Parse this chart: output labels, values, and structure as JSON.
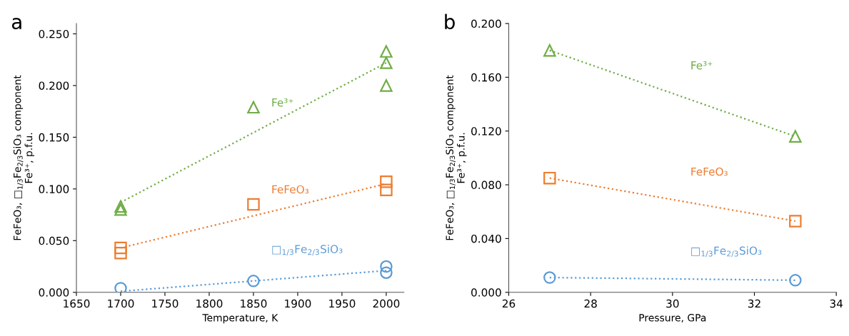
{
  "chart_data": [
    {
      "type": "scatter",
      "title": "a",
      "xlabel": "Temperature, K",
      "ylabel": "FeFeO₃, □$_{1/3}$Fe$_{2/3}$SiO₃ component\nFe³⁺, p.f.u.",
      "xlim": [
        1650,
        2020
      ],
      "xticks": [
        1650,
        1700,
        1750,
        1800,
        1850,
        1900,
        1950,
        2000
      ],
      "ylim": [
        0,
        0.26
      ],
      "yticks": [
        {
          "value": 0,
          "label": "0.000"
        },
        {
          "value": 0.05,
          "label": "0.050"
        },
        {
          "value": 0.1,
          "label": "0.100"
        },
        {
          "value": 0.15,
          "label": "0.150"
        },
        {
          "value": 0.2,
          "label": "0.200"
        },
        {
          "value": 0.25,
          "label": "0.250"
        }
      ],
      "grid": false,
      "legend": false,
      "series": [
        {
          "name": "Fe³⁺",
          "color": "#70ad47",
          "marker": "triangle",
          "x": [
            1700,
            1700,
            1850,
            2000,
            2000,
            2000
          ],
          "values": [
            0.083,
            0.08,
            0.179,
            0.233,
            0.222,
            0.2
          ]
        },
        {
          "name": "FeFeO₃",
          "color": "#ed7d31",
          "marker": "square",
          "x": [
            1700,
            1700,
            1850,
            2000,
            2000
          ],
          "values": [
            0.043,
            0.038,
            0.085,
            0.107,
            0.099
          ]
        },
        {
          "name": "□$_{1/3}$Fe$_{2/3}$SiO₃",
          "color": "#5b9bd5",
          "marker": "circle",
          "x": [
            1700,
            1850,
            2000,
            2000
          ],
          "values": [
            0.004,
            0.011,
            0.025,
            0.019
          ]
        },
        {
          "type": "line",
          "color": "#70ad47",
          "line_style": "dotted",
          "x": [
            1700,
            2000
          ],
          "values": [
            0.087,
            0.222
          ]
        },
        {
          "type": "line",
          "color": "#ed7d31",
          "line_style": "dotted",
          "x": [
            1700,
            2000
          ],
          "values": [
            0.043,
            0.105
          ]
        },
        {
          "type": "line",
          "color": "#5b9bd5",
          "line_style": "dotted",
          "x": [
            1700,
            2000
          ],
          "values": [
            0.001,
            0.021
          ]
        }
      ]
    },
    {
      "type": "scatter",
      "title": "b",
      "xlabel": "Pressure, GPa",
      "ylabel": "FeFeO₃, □$_{1/3}$Fe$_{2/3}$SiO₃ component\nFe³⁺, p.f.u.",
      "xlim": [
        26,
        34
      ],
      "xticks": [
        26,
        28,
        30,
        32,
        34
      ],
      "ylim": [
        0,
        0.2
      ],
      "yticks": [
        {
          "value": 0,
          "label": "0.000"
        },
        {
          "value": 0.04,
          "label": "0.040"
        },
        {
          "value": 0.08,
          "label": "0.080"
        },
        {
          "value": 0.12,
          "label": "0.120"
        },
        {
          "value": 0.16,
          "label": "0.160"
        },
        {
          "value": 0.2,
          "label": "0.200"
        }
      ],
      "grid": false,
      "legend": false,
      "series": [
        {
          "name": "Fe³⁺",
          "color": "#70ad47",
          "marker": "triangle",
          "x": [
            27,
            33
          ],
          "values": [
            0.18,
            0.116
          ]
        },
        {
          "name": "FeFeO₃",
          "color": "#ed7d31",
          "marker": "square",
          "x": [
            27,
            33
          ],
          "values": [
            0.085,
            0.053
          ]
        },
        {
          "name": "□$_{1/3}$Fe$_{2/3}$SiO₃",
          "color": "#5b9bd5",
          "marker": "circle",
          "x": [
            27,
            33
          ],
          "values": [
            0.011,
            0.009
          ]
        },
        {
          "type": "line",
          "color": "#70ad47",
          "line_style": "dotted",
          "x": [
            27,
            33
          ],
          "values": [
            0.18,
            0.116
          ]
        },
        {
          "type": "line",
          "color": "#ed7d31",
          "line_style": "dotted",
          "x": [
            27,
            33
          ],
          "values": [
            0.085,
            0.053
          ]
        },
        {
          "type": "line",
          "color": "#5b9bd5",
          "line_style": "dotted",
          "x": [
            27,
            33
          ],
          "values": [
            0.011,
            0.009
          ]
        }
      ]
    }
  ]
}
